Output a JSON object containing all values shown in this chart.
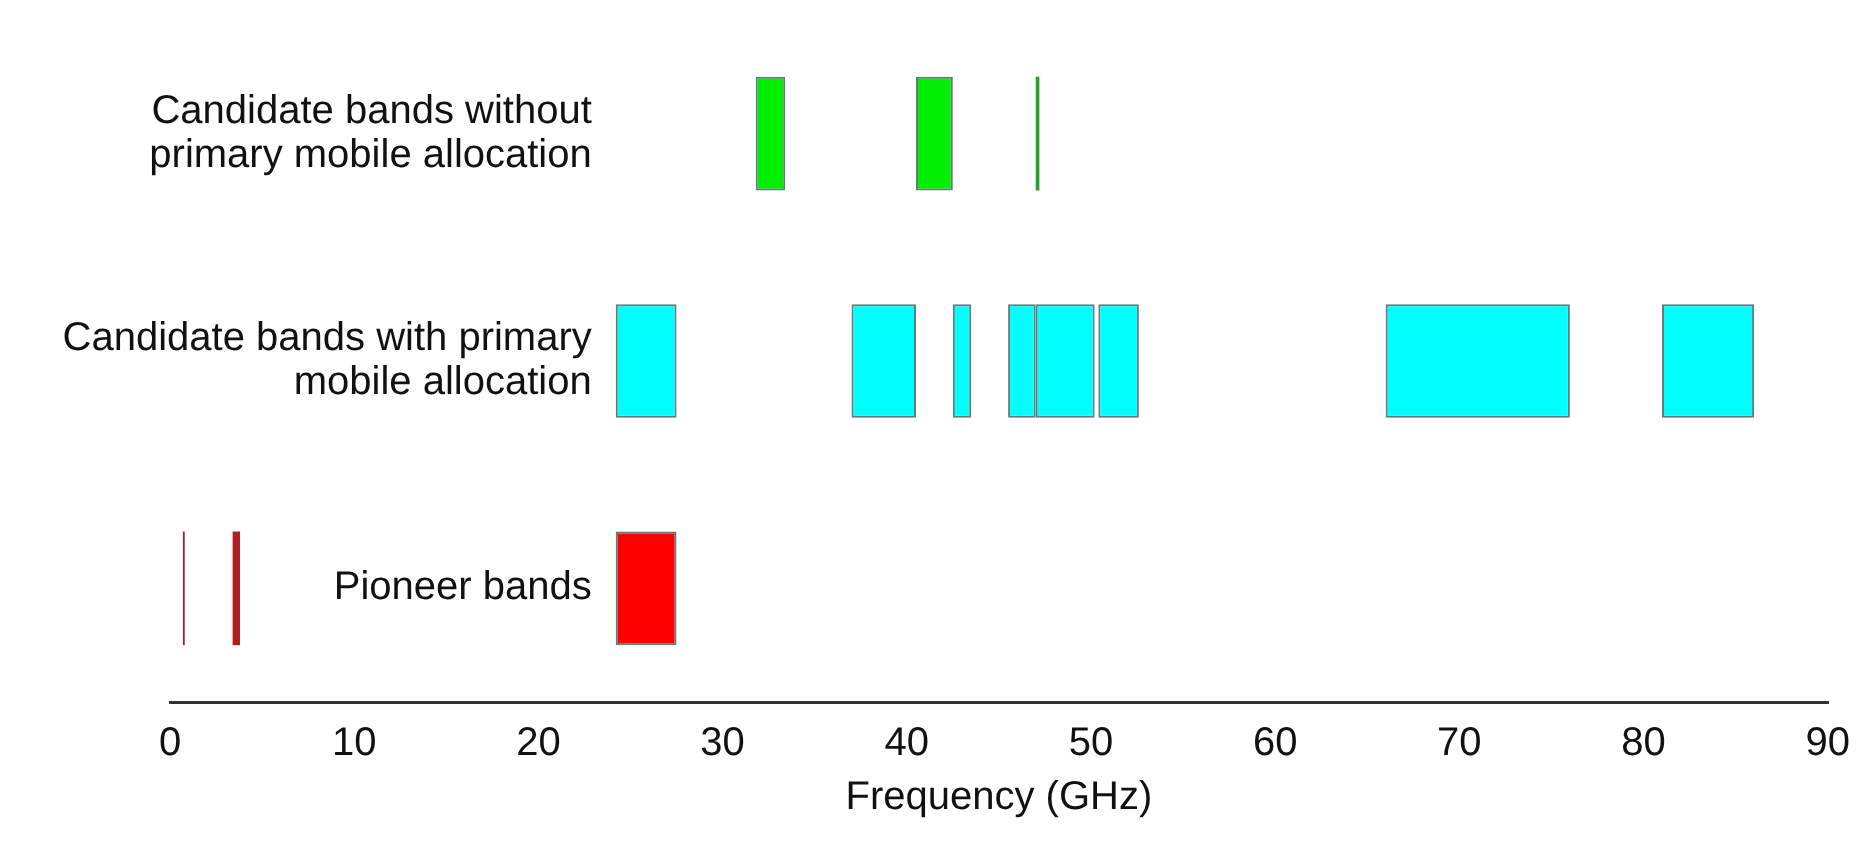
{
  "chart_data": {
    "type": "bar",
    "orientation": "horizontal",
    "xlabel": "Frequency (GHz)",
    "categories": [
      "Candidate bands without primary mobile allocation",
      "Candidate bands with primary mobile allocation",
      "Pioneer bands"
    ],
    "series": [
      {
        "base": [
          31.8,
          24.2,
          0.7
        ],
        "values": [
          1.6,
          3.3,
          0.1
        ],
        "colors": [
          "#00ee00",
          "#00ffff",
          "#8b2a2a"
        ]
      },
      {
        "base": [
          40.5,
          37,
          3.4
        ],
        "values": [
          2,
          3.5,
          0.4
        ],
        "colors": [
          "#00ee00",
          "#00ffff",
          "#b02020"
        ]
      },
      {
        "base": [
          47,
          42.5,
          24.2
        ],
        "values": [
          0.2,
          1,
          3.3
        ],
        "colors": [
          "#2e9e2e",
          "#00ffff",
          "#ff0000"
        ]
      },
      {
        "base": [
          null,
          45.5,
          null
        ],
        "values": [
          null,
          1.5,
          null
        ],
        "colors": [
          null,
          "#00ffff",
          null
        ]
      },
      {
        "base": [
          null,
          47,
          null
        ],
        "values": [
          null,
          3.2,
          null
        ],
        "colors": [
          null,
          "#00ffff",
          null
        ]
      },
      {
        "base": [
          null,
          50.4,
          null
        ],
        "values": [
          null,
          2.2,
          null
        ],
        "colors": [
          null,
          "#00ffff",
          null
        ]
      },
      {
        "base": [
          null,
          66,
          null
        ],
        "values": [
          null,
          10,
          null
        ],
        "colors": [
          null,
          "#00ffff",
          null
        ]
      },
      {
        "base": [
          null,
          81,
          null
        ],
        "values": [
          null,
          5,
          null
        ],
        "colors": [
          null,
          "#00ffff",
          null
        ]
      }
    ],
    "xlim": [
      0,
      90
    ],
    "xticks": [
      0,
      10,
      20,
      30,
      40,
      50,
      60,
      70,
      80,
      90
    ],
    "grid": false,
    "legend": false
  }
}
